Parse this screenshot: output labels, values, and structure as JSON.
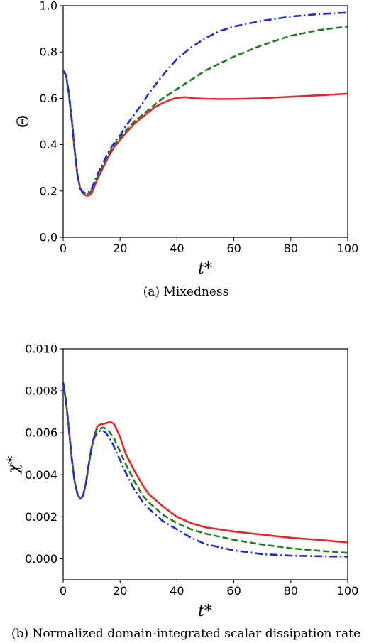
{
  "chart_data": [
    {
      "type": "line",
      "caption": "(a)  Mixedness",
      "xlabel": "t*",
      "ylabel": "Θ",
      "xlim": [
        0,
        100
      ],
      "ylim": [
        0.0,
        1.0
      ],
      "xticks": [
        "0",
        "20",
        "40",
        "60",
        "80",
        "100"
      ],
      "yticks": [
        "0.0",
        "0.2",
        "0.4",
        "0.6",
        "0.8",
        "1.0"
      ],
      "grid": false,
      "series": [
        {
          "color": "#e8262a",
          "style": "solid",
          "x": [
            0,
            1,
            2,
            3,
            4,
            5,
            6,
            7,
            8,
            9,
            10,
            11,
            12,
            14,
            16,
            18,
            20,
            22,
            25,
            28,
            30,
            32,
            35,
            38,
            40,
            43,
            46,
            50,
            55,
            60,
            70,
            80,
            90,
            100
          ],
          "y": [
            0.72,
            0.7,
            0.62,
            0.51,
            0.38,
            0.27,
            0.21,
            0.19,
            0.18,
            0.18,
            0.19,
            0.22,
            0.25,
            0.3,
            0.35,
            0.39,
            0.42,
            0.45,
            0.49,
            0.52,
            0.54,
            0.56,
            0.58,
            0.595,
            0.602,
            0.605,
            0.6,
            0.598,
            0.597,
            0.597,
            0.6,
            0.607,
            0.613,
            0.62
          ]
        },
        {
          "color": "#1e7d1e",
          "style": "dashed",
          "x": [
            0,
            1,
            2,
            3,
            4,
            5,
            6,
            7,
            8,
            9,
            10,
            11,
            12,
            14,
            16,
            18,
            20,
            22,
            25,
            28,
            30,
            35,
            40,
            45,
            50,
            55,
            60,
            70,
            80,
            90,
            100
          ],
          "y": [
            0.72,
            0.7,
            0.62,
            0.51,
            0.38,
            0.27,
            0.21,
            0.19,
            0.185,
            0.19,
            0.2,
            0.23,
            0.26,
            0.31,
            0.36,
            0.4,
            0.43,
            0.46,
            0.5,
            0.53,
            0.55,
            0.6,
            0.64,
            0.68,
            0.72,
            0.75,
            0.78,
            0.83,
            0.87,
            0.895,
            0.91
          ]
        },
        {
          "color": "#1f2ad6",
          "style": "dashdot",
          "x": [
            0,
            1,
            2,
            3,
            4,
            5,
            6,
            7,
            8,
            9,
            10,
            11,
            12,
            14,
            16,
            18,
            20,
            22,
            25,
            28,
            30,
            35,
            40,
            45,
            50,
            55,
            60,
            70,
            80,
            90,
            100
          ],
          "y": [
            0.72,
            0.7,
            0.62,
            0.51,
            0.38,
            0.27,
            0.21,
            0.195,
            0.19,
            0.195,
            0.21,
            0.24,
            0.27,
            0.32,
            0.37,
            0.41,
            0.44,
            0.48,
            0.53,
            0.58,
            0.62,
            0.7,
            0.77,
            0.82,
            0.86,
            0.89,
            0.91,
            0.935,
            0.953,
            0.964,
            0.97
          ]
        }
      ]
    },
    {
      "type": "line",
      "caption": "(b)  Normalized domain-integrated scalar dissipation rate",
      "xlabel": "t*",
      "ylabel": "χ*",
      "xlim": [
        0,
        100
      ],
      "ylim": [
        -0.001,
        0.01
      ],
      "xticks": [
        "0",
        "20",
        "40",
        "60",
        "80",
        "100"
      ],
      "yticks": [
        "0.000",
        "0.002",
        "0.004",
        "0.006",
        "0.008",
        "0.010"
      ],
      "grid": false,
      "series": [
        {
          "color": "#e8262a",
          "style": "solid",
          "x": [
            0,
            1,
            2,
            3,
            4,
            5,
            6,
            7,
            8,
            9,
            10,
            11,
            12,
            13,
            14,
            15,
            16,
            17,
            18,
            19,
            20,
            22,
            25,
            28,
            30,
            35,
            40,
            45,
            50,
            60,
            70,
            80,
            90,
            100
          ],
          "y": [
            0.0084,
            0.0075,
            0.0062,
            0.0048,
            0.0037,
            0.0031,
            0.00285,
            0.003,
            0.0036,
            0.0045,
            0.0053,
            0.0059,
            0.0063,
            0.0064,
            0.00642,
            0.00645,
            0.0065,
            0.0065,
            0.0064,
            0.0061,
            0.0058,
            0.005,
            0.0042,
            0.0035,
            0.0031,
            0.0025,
            0.002,
            0.0017,
            0.0015,
            0.0013,
            0.00115,
            0.001,
            0.0009,
            0.00078
          ]
        },
        {
          "color": "#1e7d1e",
          "style": "dashed",
          "x": [
            0,
            1,
            2,
            3,
            4,
            5,
            6,
            7,
            8,
            9,
            10,
            11,
            12,
            13,
            14,
            15,
            16,
            17,
            18,
            19,
            20,
            22,
            25,
            28,
            30,
            35,
            40,
            45,
            50,
            60,
            70,
            80,
            90,
            100
          ],
          "y": [
            0.0084,
            0.0075,
            0.0062,
            0.0048,
            0.0037,
            0.0031,
            0.00285,
            0.003,
            0.0036,
            0.0045,
            0.0053,
            0.0059,
            0.0062,
            0.0062,
            0.00625,
            0.0062,
            0.0061,
            0.0059,
            0.0057,
            0.0054,
            0.0051,
            0.0045,
            0.0037,
            0.003,
            0.0027,
            0.0021,
            0.0017,
            0.0014,
            0.0012,
            0.0009,
            0.00068,
            0.0005,
            0.00038,
            0.00028
          ]
        },
        {
          "color": "#1f2ad6",
          "style": "dashdot",
          "x": [
            0,
            1,
            2,
            3,
            4,
            5,
            6,
            7,
            8,
            9,
            10,
            11,
            12,
            13,
            14,
            15,
            16,
            17,
            18,
            19,
            20,
            22,
            25,
            28,
            30,
            35,
            40,
            45,
            50,
            60,
            70,
            80,
            90,
            100
          ],
          "y": [
            0.0084,
            0.0075,
            0.0062,
            0.0048,
            0.0037,
            0.0031,
            0.00285,
            0.003,
            0.0036,
            0.0045,
            0.0053,
            0.0058,
            0.006,
            0.0061,
            0.0061,
            0.006,
            0.0058,
            0.0056,
            0.0053,
            0.005,
            0.0047,
            0.0041,
            0.0033,
            0.0027,
            0.0024,
            0.0018,
            0.0014,
            0.001,
            0.0007,
            0.0004,
            0.00022,
            0.00015,
            0.00012,
            0.0001
          ]
        }
      ]
    }
  ]
}
